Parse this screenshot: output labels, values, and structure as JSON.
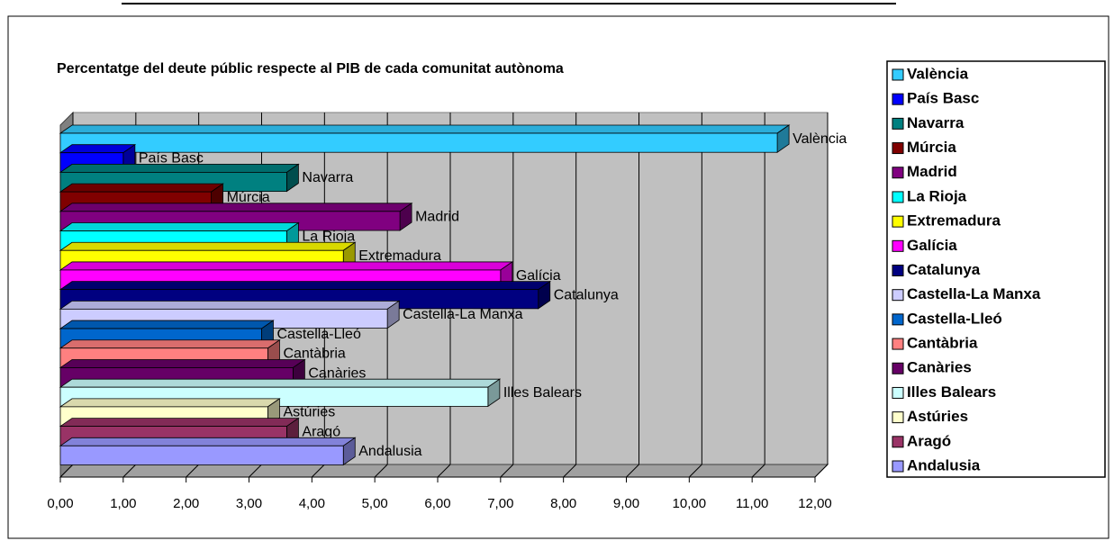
{
  "chart_data": {
    "type": "bar3d_horizontal",
    "title": "Percentatge del deute públic respecte al PIB de cada comunitat autònoma",
    "categories": [
      "València",
      "País Basc",
      "Navarra",
      "Múrcia",
      "Madrid",
      "La Rioja",
      "Extremadura",
      "Galícia",
      "Catalunya",
      "Castella-La Manxa",
      "Castella-Lleó",
      "Cantàbria",
      "Canàries",
      "Illes Balears",
      "Astúries",
      "Aragó",
      "Andalusia"
    ],
    "values": [
      11.4,
      1.0,
      3.6,
      2.4,
      5.4,
      3.6,
      4.5,
      7.0,
      7.6,
      5.2,
      3.2,
      3.3,
      3.7,
      6.8,
      3.3,
      3.6,
      4.5
    ],
    "colors": [
      "#33CCFF",
      "#0000FF",
      "#008080",
      "#800000",
      "#800080",
      "#00FFFF",
      "#FFFF00",
      "#FF00FF",
      "#000080",
      "#CCCCFF",
      "#0066CC",
      "#FF8080",
      "#660066",
      "#CCFFFF",
      "#FFFFCC",
      "#993366",
      "#9999FF"
    ],
    "xlim": [
      0,
      12
    ],
    "xticks": [
      {
        "value": 0,
        "label": "0,00"
      },
      {
        "value": 1,
        "label": "1,00"
      },
      {
        "value": 2,
        "label": "2,00"
      },
      {
        "value": 3,
        "label": "3,00"
      },
      {
        "value": 4,
        "label": "4,00"
      },
      {
        "value": 5,
        "label": "5,00"
      },
      {
        "value": 6,
        "label": "6,00"
      },
      {
        "value": 7,
        "label": "7,00"
      },
      {
        "value": 8,
        "label": "8,00"
      },
      {
        "value": 9,
        "label": "9,00"
      },
      {
        "value": 10,
        "label": "10,00"
      },
      {
        "value": 11,
        "label": "11,00"
      },
      {
        "value": 12,
        "label": "12,00"
      }
    ],
    "grid": true,
    "legend": "right"
  }
}
